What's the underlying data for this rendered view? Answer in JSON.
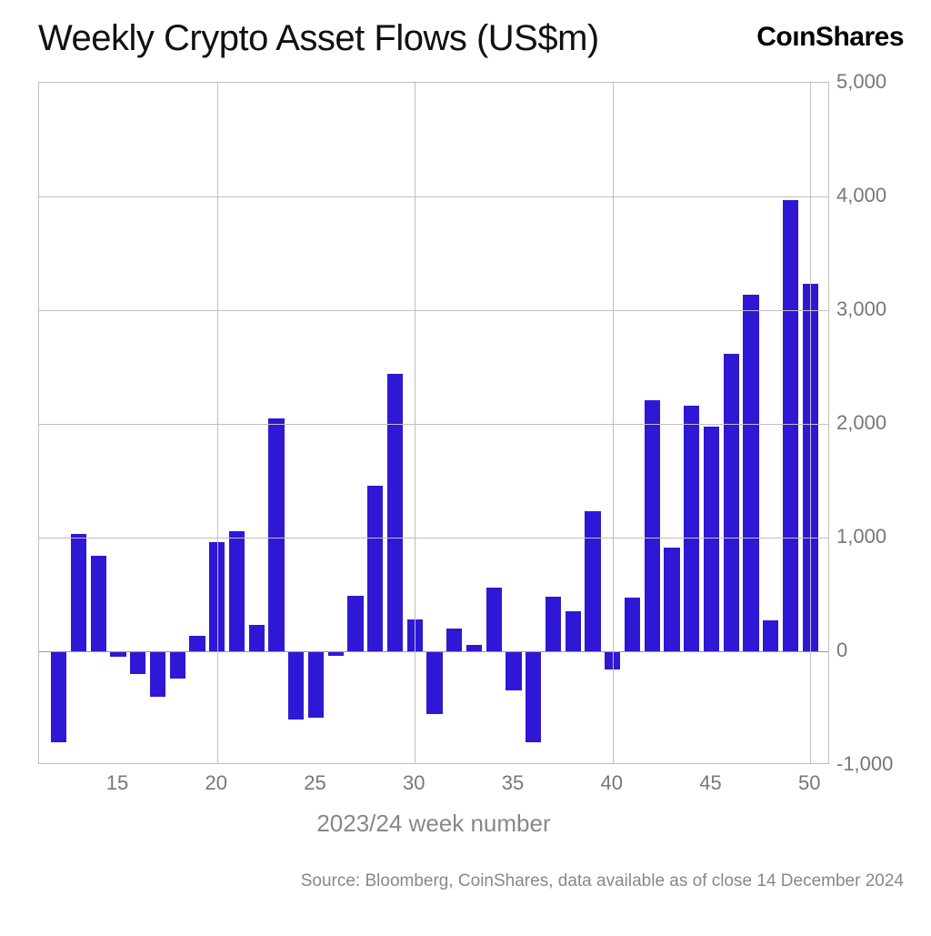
{
  "title": "Weekly Crypto Asset Flows (US$m)",
  "brand": "CoinShares",
  "xlabel": "2023/24 week number",
  "source_text": "Source: Bloomberg, CoinShares, data available as of close 14 December 2024",
  "chart": {
    "type": "bar",
    "bar_color": "#2e18d6",
    "background_color": "#ffffff",
    "grid_color": "#bfbfbf",
    "tick_label_color": "#777777",
    "ylim": [
      -1000,
      5000
    ],
    "ytick_step": 1000,
    "ytick_labels": [
      "-1,000",
      "0",
      "1,000",
      "2,000",
      "3,000",
      "4,000",
      "5,000"
    ],
    "xlim": [
      11,
      51
    ],
    "x_major_ticks": [
      15,
      20,
      25,
      30,
      35,
      40,
      45,
      50
    ],
    "x_grid_lines": [
      20,
      30,
      40,
      50
    ],
    "bar_width": 0.8,
    "data": [
      {
        "x": 12,
        "y": -800
      },
      {
        "x": 13,
        "y": 1030
      },
      {
        "x": 14,
        "y": 840
      },
      {
        "x": 15,
        "y": -50
      },
      {
        "x": 16,
        "y": -200
      },
      {
        "x": 17,
        "y": -400
      },
      {
        "x": 18,
        "y": -240
      },
      {
        "x": 19,
        "y": 140
      },
      {
        "x": 20,
        "y": 960
      },
      {
        "x": 21,
        "y": 1060
      },
      {
        "x": 22,
        "y": 230
      },
      {
        "x": 23,
        "y": 2050
      },
      {
        "x": 24,
        "y": -600
      },
      {
        "x": 25,
        "y": -580
      },
      {
        "x": 26,
        "y": -40
      },
      {
        "x": 27,
        "y": 490
      },
      {
        "x": 28,
        "y": 1460
      },
      {
        "x": 29,
        "y": 2440
      },
      {
        "x": 30,
        "y": 280
      },
      {
        "x": 31,
        "y": -550
      },
      {
        "x": 32,
        "y": 200
      },
      {
        "x": 33,
        "y": 60
      },
      {
        "x": 34,
        "y": 560
      },
      {
        "x": 35,
        "y": -340
      },
      {
        "x": 36,
        "y": -800
      },
      {
        "x": 37,
        "y": 480
      },
      {
        "x": 38,
        "y": 350
      },
      {
        "x": 39,
        "y": 1230
      },
      {
        "x": 40,
        "y": -160
      },
      {
        "x": 41,
        "y": 470
      },
      {
        "x": 42,
        "y": 2210
      },
      {
        "x": 43,
        "y": 910
      },
      {
        "x": 44,
        "y": 2160
      },
      {
        "x": 45,
        "y": 1980
      },
      {
        "x": 46,
        "y": 2620
      },
      {
        "x": 47,
        "y": 3140
      },
      {
        "x": 48,
        "y": 270
      },
      {
        "x": 49,
        "y": 3970
      },
      {
        "x": 50,
        "y": 3230
      }
    ],
    "title_fontsize": 40,
    "axis_label_fontsize": 26,
    "tick_fontsize": 22
  }
}
